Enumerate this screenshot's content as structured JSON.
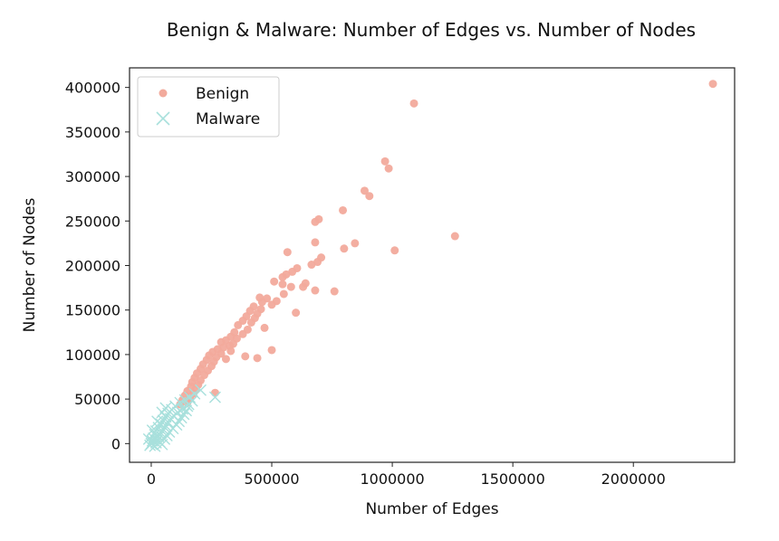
{
  "chart_data": {
    "type": "scatter",
    "title": "Benign & Malware: Number of Edges vs. Number of Nodes",
    "xlabel": "Number of Edges",
    "ylabel": "Number of Nodes",
    "xlim": [
      -90000,
      2420000
    ],
    "ylim": [
      -21000,
      422000
    ],
    "xticks": [
      0,
      500000,
      1000000,
      1500000,
      2000000
    ],
    "xtick_labels": [
      "0",
      "500000",
      "1000000",
      "1500000",
      "2000000"
    ],
    "yticks": [
      0,
      50000,
      100000,
      150000,
      200000,
      250000,
      300000,
      350000,
      400000
    ],
    "ytick_labels": [
      "0",
      "50000",
      "100000",
      "150000",
      "200000",
      "250000",
      "300000",
      "350000",
      "400000"
    ],
    "grid": false,
    "legend": "upper-left",
    "series": [
      {
        "name": "Benign",
        "marker": "circle",
        "color": "#f2aa9c",
        "points": [
          [
            2330000,
            404000
          ],
          [
            1090000,
            382000
          ],
          [
            970000,
            317000
          ],
          [
            985000,
            309000
          ],
          [
            885000,
            284000
          ],
          [
            905000,
            278000
          ],
          [
            795000,
            262000
          ],
          [
            695000,
            252000
          ],
          [
            680000,
            249000
          ],
          [
            1260000,
            233000
          ],
          [
            845000,
            225000
          ],
          [
            680000,
            226000
          ],
          [
            800000,
            219000
          ],
          [
            1010000,
            217000
          ],
          [
            565000,
            215000
          ],
          [
            705000,
            209000
          ],
          [
            690000,
            204000
          ],
          [
            665000,
            201000
          ],
          [
            605000,
            197000
          ],
          [
            585000,
            193000
          ],
          [
            560000,
            190000
          ],
          [
            545000,
            187000
          ],
          [
            510000,
            182000
          ],
          [
            640000,
            180000
          ],
          [
            545000,
            179000
          ],
          [
            580000,
            176000
          ],
          [
            630000,
            176000
          ],
          [
            680000,
            172000
          ],
          [
            760000,
            171000
          ],
          [
            550000,
            168000
          ],
          [
            450000,
            164000
          ],
          [
            480000,
            163000
          ],
          [
            520000,
            160000
          ],
          [
            460000,
            159000
          ],
          [
            500000,
            156000
          ],
          [
            425000,
            154000
          ],
          [
            455000,
            151000
          ],
          [
            410000,
            149000
          ],
          [
            600000,
            147000
          ],
          [
            440000,
            146000
          ],
          [
            395000,
            143000
          ],
          [
            430000,
            141000
          ],
          [
            380000,
            138000
          ],
          [
            415000,
            136000
          ],
          [
            360000,
            133000
          ],
          [
            470000,
            130000
          ],
          [
            400000,
            128000
          ],
          [
            345000,
            125000
          ],
          [
            380000,
            123000
          ],
          [
            330000,
            120000
          ],
          [
            355000,
            118000
          ],
          [
            310000,
            116000
          ],
          [
            290000,
            114000
          ],
          [
            340000,
            112000
          ],
          [
            325000,
            110000
          ],
          [
            300000,
            108000
          ],
          [
            275000,
            106000
          ],
          [
            255000,
            103000
          ],
          [
            290000,
            101000
          ],
          [
            240000,
            99000
          ],
          [
            270000,
            97000
          ],
          [
            500000,
            105000
          ],
          [
            230000,
            94000
          ],
          [
            260000,
            92000
          ],
          [
            310000,
            95000
          ],
          [
            215000,
            89000
          ],
          [
            250000,
            87000
          ],
          [
            205000,
            84000
          ],
          [
            440000,
            96000
          ],
          [
            235000,
            82000
          ],
          [
            190000,
            79000
          ],
          [
            220000,
            77000
          ],
          [
            180000,
            74000
          ],
          [
            205000,
            71000
          ],
          [
            170000,
            69000
          ],
          [
            195000,
            66000
          ],
          [
            165000,
            64000
          ],
          [
            185000,
            61000
          ],
          [
            150000,
            59000
          ],
          [
            175000,
            56000
          ],
          [
            140000,
            54000
          ],
          [
            160000,
            51000
          ],
          [
            130000,
            49000
          ],
          [
            150000,
            46000
          ],
          [
            120000,
            44000
          ],
          [
            265000,
            57000
          ],
          [
            390000,
            98000
          ],
          [
            330000,
            104000
          ]
        ]
      },
      {
        "name": "Malware",
        "marker": "x",
        "color": "#a8e0dc",
        "points": [
          [
            265000,
            52000
          ],
          [
            205000,
            60000
          ],
          [
            180000,
            56000
          ],
          [
            160000,
            52000
          ],
          [
            140000,
            49000
          ],
          [
            120000,
            46000
          ],
          [
            150000,
            42000
          ],
          [
            100000,
            42000
          ],
          [
            130000,
            39000
          ],
          [
            85000,
            38000
          ],
          [
            110000,
            35000
          ],
          [
            70000,
            34000
          ],
          [
            95000,
            31000
          ],
          [
            60000,
            30000
          ],
          [
            80000,
            28000
          ],
          [
            50000,
            26000
          ],
          [
            70000,
            24000
          ],
          [
            40000,
            22000
          ],
          [
            60000,
            20000
          ],
          [
            30000,
            18000
          ],
          [
            50000,
            16000
          ],
          [
            20000,
            14000
          ],
          [
            40000,
            12000
          ],
          [
            15000,
            10000
          ],
          [
            30000,
            8000
          ],
          [
            10000,
            6000
          ],
          [
            25000,
            4000
          ],
          [
            5000,
            3000
          ],
          [
            20000,
            1000
          ],
          [
            0,
            0
          ],
          [
            -5000,
            -2000
          ],
          [
            15000,
            -3000
          ],
          [
            35000,
            2000
          ],
          [
            45000,
            -1000
          ],
          [
            55000,
            5000
          ],
          [
            65000,
            9000
          ],
          [
            75000,
            13000
          ],
          [
            90000,
            17000
          ],
          [
            105000,
            21000
          ],
          [
            115000,
            25000
          ],
          [
            125000,
            29000
          ],
          [
            135000,
            33000
          ],
          [
            145000,
            37000
          ],
          [
            155000,
            44000
          ],
          [
            170000,
            48000
          ],
          [
            -10000,
            5000
          ],
          [
            5000,
            15000
          ],
          [
            25000,
            25000
          ],
          [
            45000,
            35000
          ],
          [
            60000,
            40000
          ]
        ]
      }
    ]
  }
}
